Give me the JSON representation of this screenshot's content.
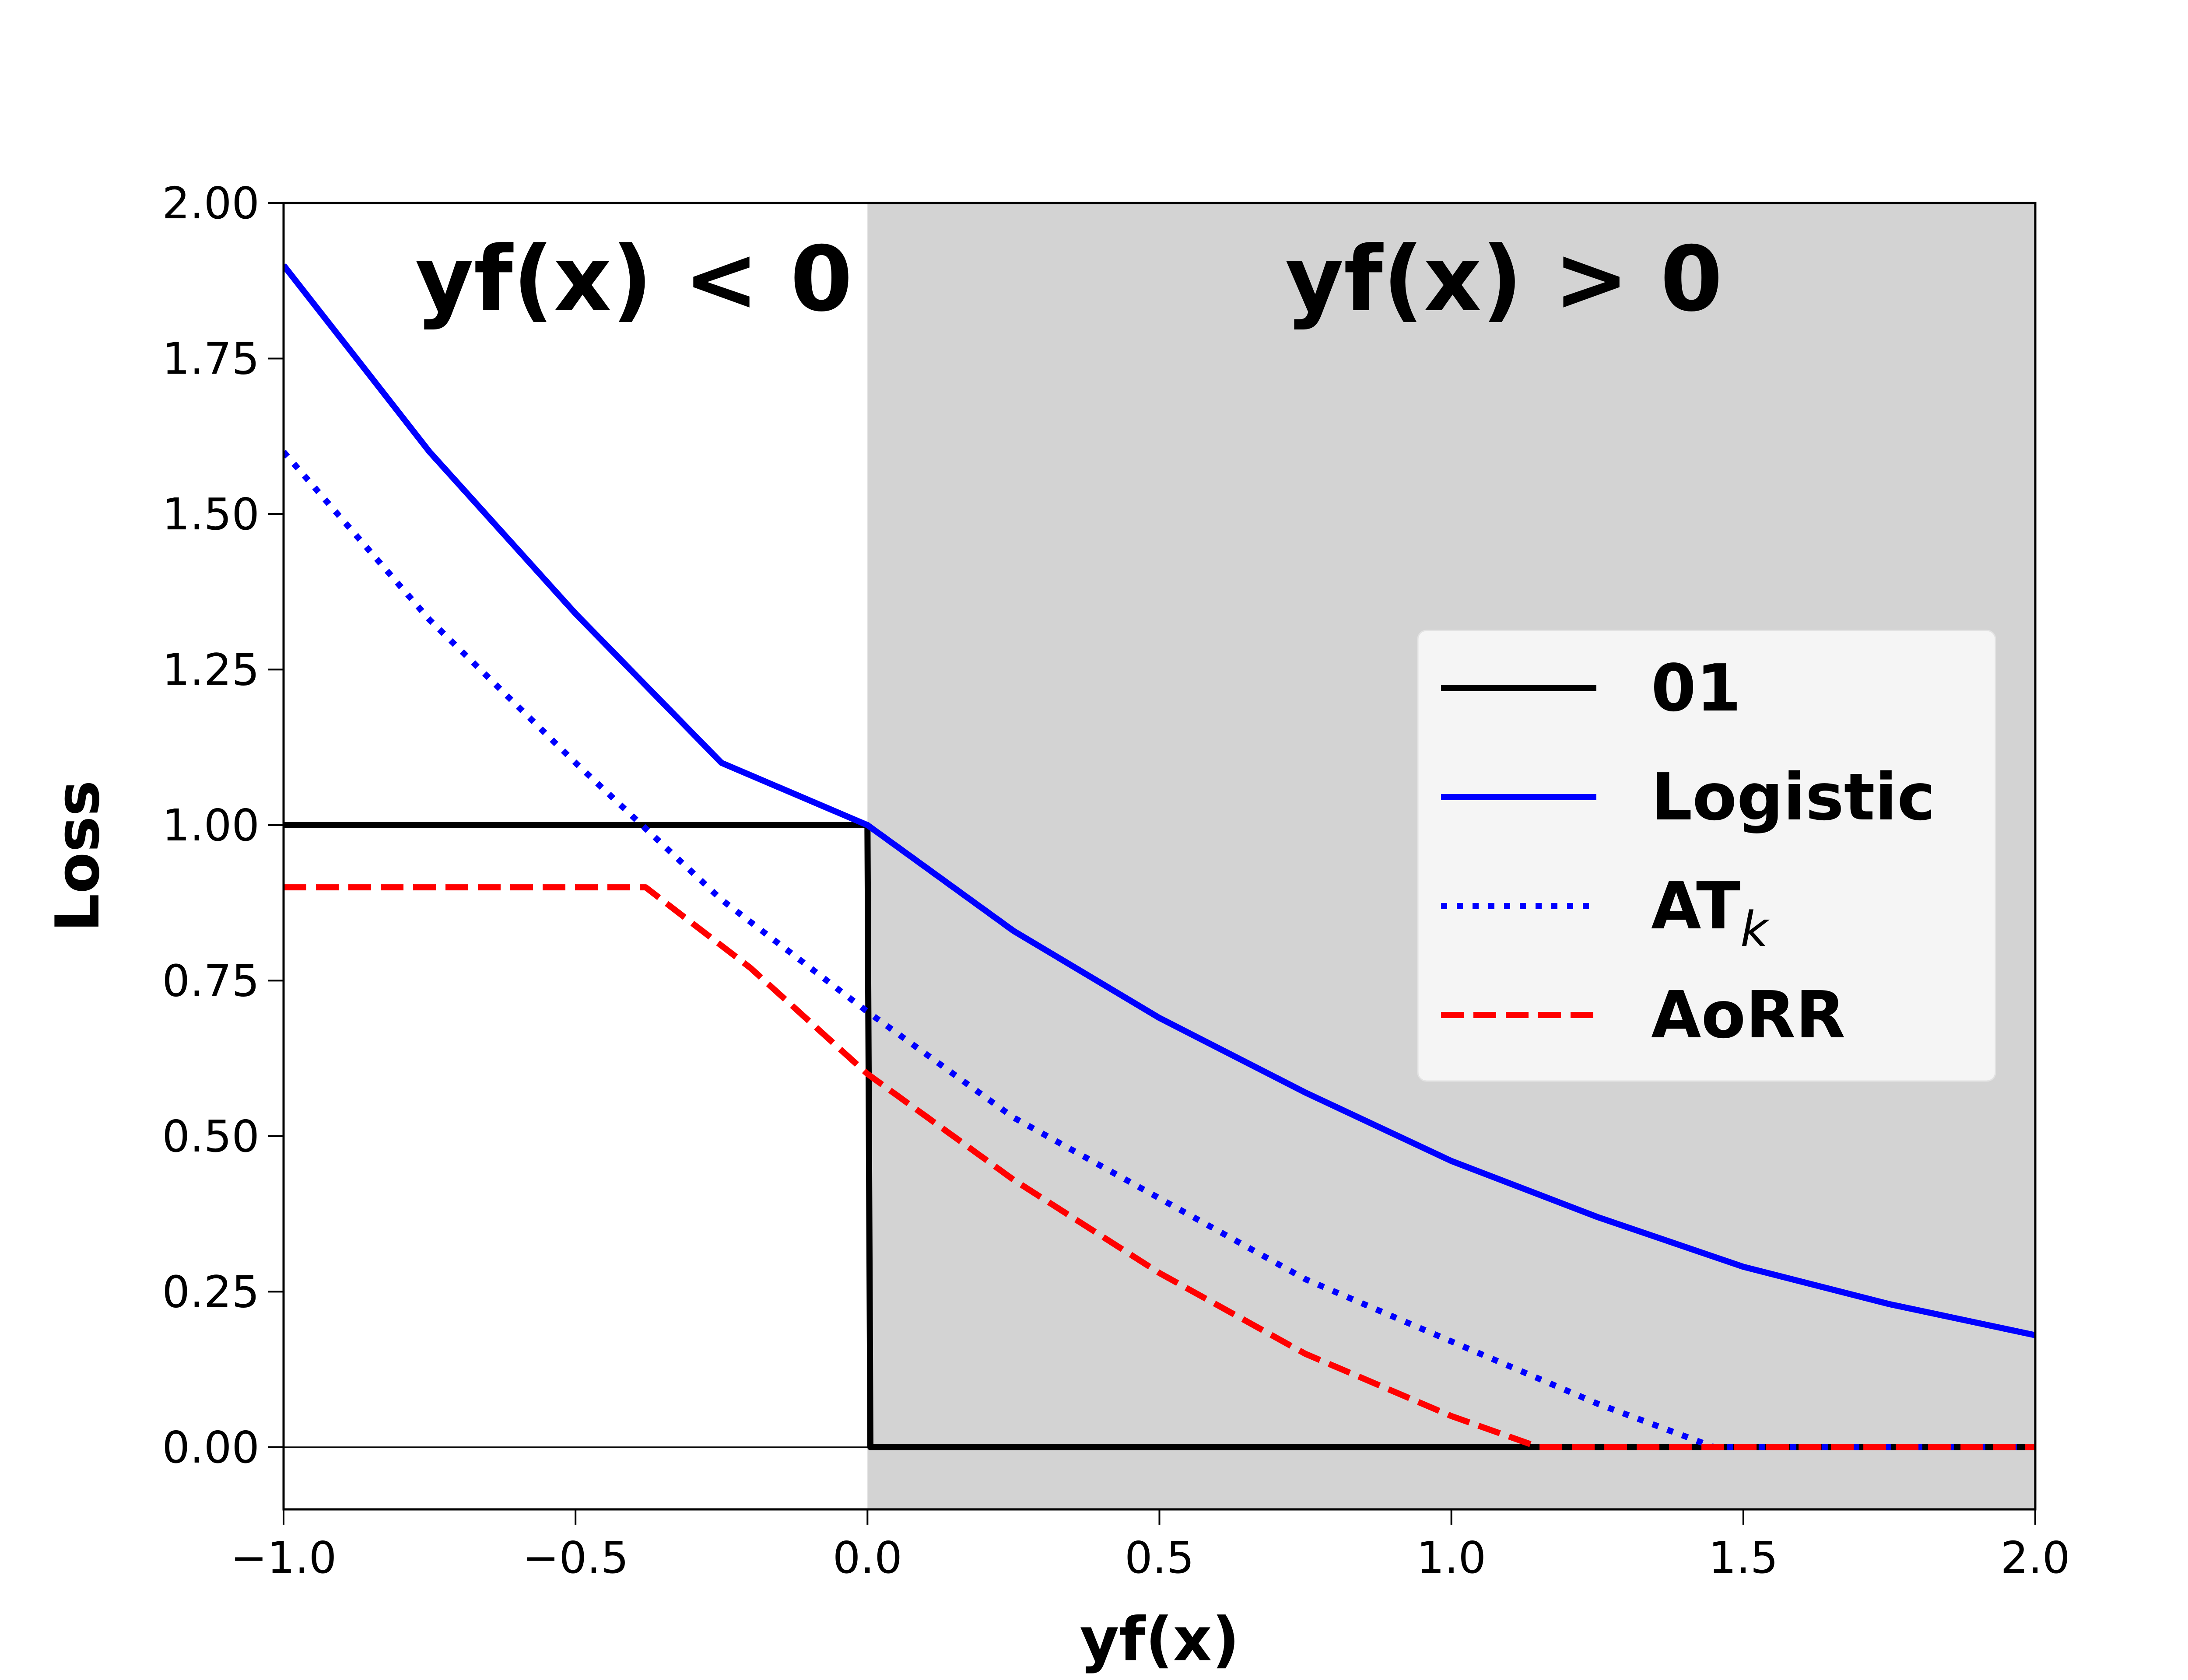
{
  "chart_data": {
    "type": "line",
    "title": "",
    "xlabel": "yf(x)",
    "ylabel": "Loss",
    "xlim": [
      -1.0,
      2.0
    ],
    "ylim": [
      -0.1,
      2.0
    ],
    "xticks": [
      -1.0,
      -0.5,
      0.0,
      0.5,
      1.0,
      1.5,
      2.0
    ],
    "xtick_labels": [
      "−1.0",
      "−0.5",
      "0.0",
      "0.5",
      "1.0",
      "1.5",
      "2.0"
    ],
    "yticks": [
      0.0,
      0.25,
      0.5,
      0.75,
      1.0,
      1.25,
      1.5,
      1.75,
      2.0
    ],
    "ytick_labels": [
      "0.00",
      "0.25",
      "0.50",
      "0.75",
      "1.00",
      "1.25",
      "1.50",
      "1.75",
      "2.00"
    ],
    "grid": false,
    "legend_position": "center-right",
    "shaded_region": {
      "x_from": 0.0,
      "x_to": 2.0,
      "color": "#d3d3d3"
    },
    "region_labels": [
      {
        "text": "yf(x) < 0",
        "x": -0.4,
        "y": 1.87
      },
      {
        "text": "yf(x) > 0",
        "x": 1.09,
        "y": 1.87
      }
    ],
    "reference_line": {
      "y": 0.0,
      "color": "#000000"
    },
    "series": [
      {
        "name": "01",
        "style": "solid",
        "color": "#000000",
        "x": [
          -1.0,
          0.0,
          0.005,
          2.0
        ],
        "y": [
          1.0,
          1.0,
          0.0,
          0.0
        ]
      },
      {
        "name": "Logistic",
        "style": "solid",
        "color": "#0000ff",
        "x": [
          -1.0,
          -0.75,
          -0.5,
          -0.25,
          0.0,
          0.25,
          0.5,
          0.75,
          1.0,
          1.25,
          1.5,
          1.75,
          2.0
        ],
        "y": [
          1.9,
          1.6,
          1.34,
          1.1,
          1.0,
          0.83,
          0.69,
          0.57,
          0.46,
          0.37,
          0.29,
          0.23,
          0.18
        ]
      },
      {
        "name_base": "AT",
        "name_sub": "k",
        "style": "dotted",
        "color": "#0000ff",
        "x": [
          -1.0,
          -0.75,
          -0.5,
          -0.25,
          0.0,
          0.25,
          0.5,
          0.75,
          1.0,
          1.25,
          1.45,
          1.7,
          2.0
        ],
        "y": [
          1.6,
          1.33,
          1.1,
          0.88,
          0.7,
          0.53,
          0.4,
          0.27,
          0.17,
          0.07,
          0.0,
          0.0,
          0.0
        ]
      },
      {
        "name": "AoRR",
        "style": "dashed",
        "color": "#ff0000",
        "x": [
          -1.0,
          -0.38,
          -0.2,
          0.0,
          0.25,
          0.5,
          0.75,
          1.0,
          1.15,
          1.5,
          2.0
        ],
        "y": [
          0.9,
          0.9,
          0.77,
          0.6,
          0.43,
          0.28,
          0.15,
          0.05,
          0.0,
          0.0,
          0.0
        ]
      }
    ]
  }
}
